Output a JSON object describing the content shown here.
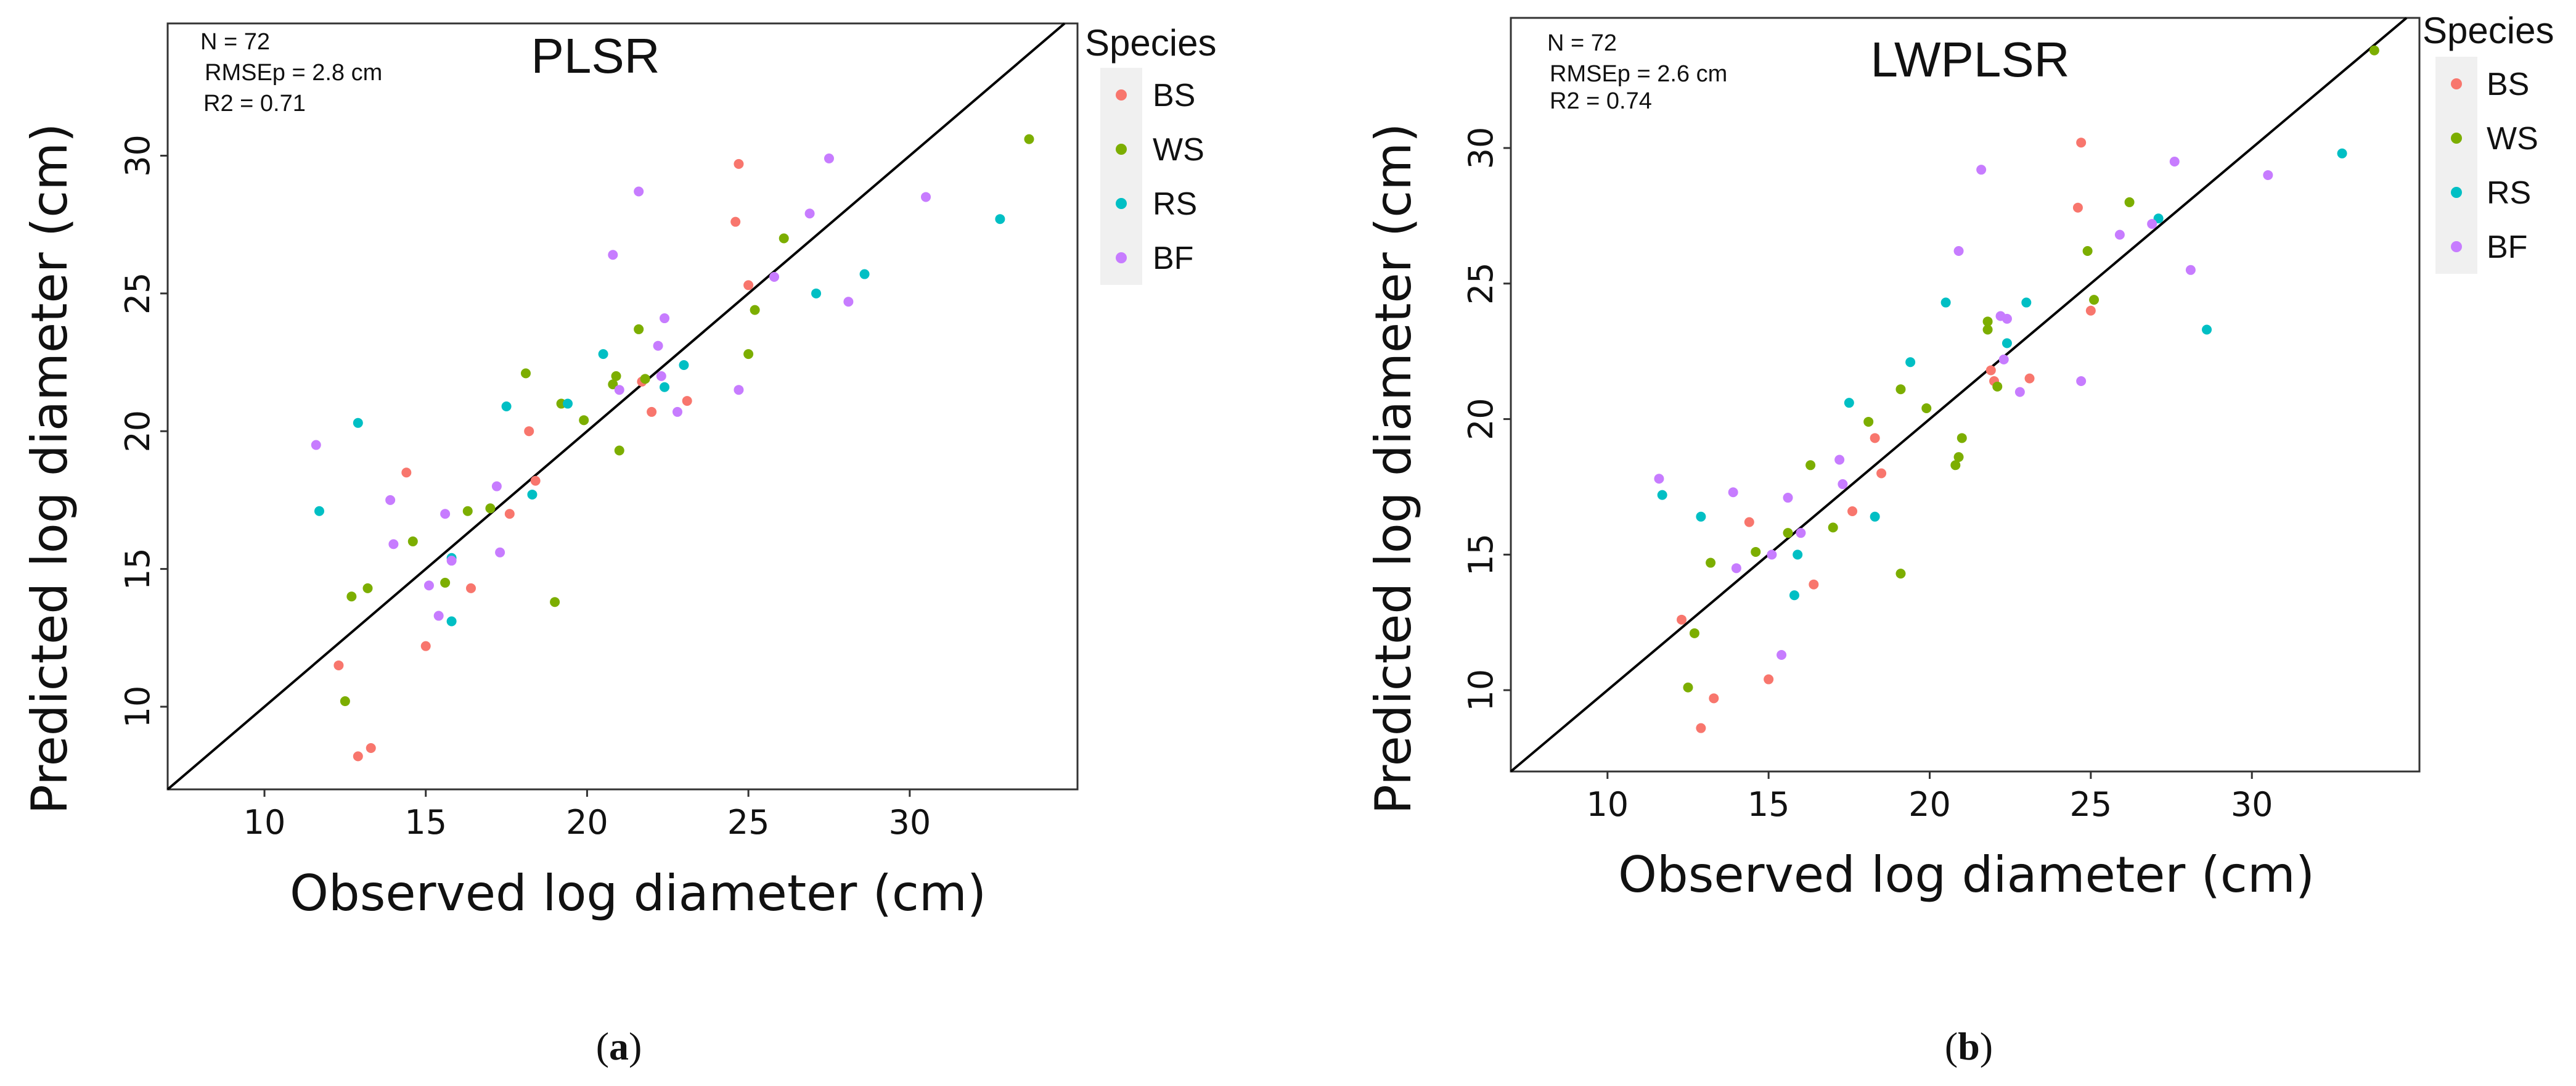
{
  "chart_data": [
    {
      "type": "scatter",
      "panel_label": "a",
      "title": "PLSR",
      "xlabel": "Observed log diameter (cm)",
      "ylabel": "Predicted log diameter (cm)",
      "xlim": [
        7,
        35.2
      ],
      "ylim": [
        7,
        34.8
      ],
      "xticks": [
        10,
        15,
        20,
        25,
        30
      ],
      "yticks": [
        10,
        15,
        20,
        25,
        30
      ],
      "grid": false,
      "reference_line": "y = x",
      "legend_position": "right",
      "stats": {
        "n": "N = 72",
        "rmse": "RMSEp = 2.8 cm",
        "r2": "R2 =  0.71"
      },
      "legend": {
        "title": "Species",
        "entries": [
          {
            "name": "BS",
            "color": "#F8766D"
          },
          {
            "name": "WS",
            "color": "#7CAE00"
          },
          {
            "name": "RS",
            "color": "#00BFC4"
          },
          {
            "name": "BF",
            "color": "#C77CFF"
          }
        ]
      },
      "series": [
        {
          "name": "BS",
          "color": "#F8766D",
          "points": [
            [
              24.7,
              29.7
            ],
            [
              24.6,
              27.6
            ],
            [
              25.0,
              25.3
            ],
            [
              21.7,
              21.8
            ],
            [
              22.0,
              20.7
            ],
            [
              23.1,
              21.1
            ],
            [
              18.2,
              20.0
            ],
            [
              18.4,
              18.2
            ],
            [
              17.6,
              17.0
            ],
            [
              14.4,
              18.5
            ],
            [
              16.4,
              14.3
            ],
            [
              15.0,
              12.2
            ],
            [
              12.3,
              11.5
            ],
            [
              13.3,
              8.5
            ],
            [
              12.9,
              8.2
            ]
          ]
        },
        {
          "name": "WS",
          "color": "#7CAE00",
          "points": [
            [
              33.7,
              30.6
            ],
            [
              26.1,
              27.0
            ],
            [
              25.2,
              24.4
            ],
            [
              25.0,
              22.8
            ],
            [
              21.6,
              23.7
            ],
            [
              21.8,
              21.9
            ],
            [
              20.9,
              22.0
            ],
            [
              20.8,
              21.7
            ],
            [
              18.1,
              22.1
            ],
            [
              19.2,
              21.0
            ],
            [
              19.9,
              20.4
            ],
            [
              21.0,
              19.3
            ],
            [
              17.0,
              17.2
            ],
            [
              16.3,
              17.1
            ],
            [
              15.6,
              14.5
            ],
            [
              14.6,
              16.0
            ],
            [
              13.2,
              14.3
            ],
            [
              12.7,
              14.0
            ],
            [
              12.5,
              10.2
            ],
            [
              19.0,
              13.8
            ]
          ]
        },
        {
          "name": "RS",
          "color": "#00BFC4",
          "points": [
            [
              32.8,
              27.7
            ],
            [
              28.6,
              25.7
            ],
            [
              27.1,
              25.0
            ],
            [
              23.0,
              22.4
            ],
            [
              22.4,
              21.6
            ],
            [
              20.5,
              22.8
            ],
            [
              19.4,
              21.0
            ],
            [
              17.5,
              20.9
            ],
            [
              18.3,
              17.7
            ],
            [
              12.9,
              20.3
            ],
            [
              11.7,
              17.1
            ],
            [
              15.8,
              13.1
            ],
            [
              15.8,
              15.4
            ]
          ]
        },
        {
          "name": "BF",
          "color": "#C77CFF",
          "points": [
            [
              30.5,
              28.5
            ],
            [
              27.5,
              29.9
            ],
            [
              26.9,
              27.9
            ],
            [
              28.1,
              24.7
            ],
            [
              25.8,
              25.6
            ],
            [
              21.6,
              28.7
            ],
            [
              20.8,
              26.4
            ],
            [
              22.4,
              24.1
            ],
            [
              22.2,
              23.1
            ],
            [
              22.3,
              22.0
            ],
            [
              22.8,
              20.7
            ],
            [
              24.7,
              21.5
            ],
            [
              21.0,
              21.5
            ],
            [
              17.2,
              18.0
            ],
            [
              17.3,
              15.6
            ],
            [
              15.6,
              17.0
            ],
            [
              15.8,
              15.3
            ],
            [
              15.1,
              14.4
            ],
            [
              15.4,
              13.3
            ],
            [
              14.0,
              15.9
            ],
            [
              13.9,
              17.5
            ],
            [
              11.6,
              19.5
            ]
          ]
        }
      ]
    },
    {
      "type": "scatter",
      "panel_label": "b",
      "title": "LWPLSR",
      "xlabel": "Observed log diameter (cm)",
      "ylabel": "Predicted log diameter (cm)",
      "xlim": [
        7,
        35.2
      ],
      "ylim": [
        7,
        34.8
      ],
      "xticks": [
        10,
        15,
        20,
        25,
        30
      ],
      "yticks": [
        10,
        15,
        20,
        25,
        30
      ],
      "grid": false,
      "reference_line": "y = x",
      "legend_position": "right",
      "stats": {
        "n": "N = 72",
        "rmse": "RMSEp = 2.6 cm",
        "r2": "R2 =  0.74"
      },
      "legend": {
        "title": "Species",
        "entries": [
          {
            "name": "BS",
            "color": "#F8766D"
          },
          {
            "name": "WS",
            "color": "#7CAE00"
          },
          {
            "name": "RS",
            "color": "#00BFC4"
          },
          {
            "name": "BF",
            "color": "#C77CFF"
          }
        ]
      },
      "series": [
        {
          "name": "BS",
          "color": "#F8766D",
          "points": [
            [
              24.7,
              30.2
            ],
            [
              24.6,
              27.8
            ],
            [
              25.0,
              24.0
            ],
            [
              21.9,
              21.8
            ],
            [
              22.0,
              21.4
            ],
            [
              23.1,
              21.5
            ],
            [
              18.3,
              19.3
            ],
            [
              18.5,
              18.0
            ],
            [
              17.6,
              16.6
            ],
            [
              14.4,
              16.2
            ],
            [
              16.4,
              13.9
            ],
            [
              15.0,
              10.4
            ],
            [
              12.3,
              12.6
            ],
            [
              13.3,
              9.7
            ],
            [
              12.9,
              8.6
            ]
          ]
        },
        {
          "name": "WS",
          "color": "#7CAE00",
          "points": [
            [
              33.8,
              33.6
            ],
            [
              26.2,
              28.0
            ],
            [
              24.9,
              26.2
            ],
            [
              25.1,
              24.4
            ],
            [
              21.8,
              23.6
            ],
            [
              21.8,
              23.3
            ],
            [
              22.1,
              21.2
            ],
            [
              20.9,
              18.6
            ],
            [
              20.8,
              18.3
            ],
            [
              18.1,
              19.9
            ],
            [
              19.1,
              21.1
            ],
            [
              19.9,
              20.4
            ],
            [
              21.0,
              19.3
            ],
            [
              17.0,
              16.0
            ],
            [
              16.3,
              18.3
            ],
            [
              15.6,
              15.8
            ],
            [
              14.6,
              15.1
            ],
            [
              13.2,
              14.7
            ],
            [
              12.7,
              12.1
            ],
            [
              12.5,
              10.1
            ],
            [
              19.1,
              14.3
            ]
          ]
        },
        {
          "name": "RS",
          "color": "#00BFC4",
          "points": [
            [
              32.8,
              29.8
            ],
            [
              27.1,
              27.4
            ],
            [
              28.6,
              23.3
            ],
            [
              23.0,
              24.3
            ],
            [
              22.4,
              22.8
            ],
            [
              20.5,
              24.3
            ],
            [
              19.4,
              22.1
            ],
            [
              17.5,
              20.6
            ],
            [
              18.3,
              16.4
            ],
            [
              12.9,
              16.4
            ],
            [
              11.7,
              17.2
            ],
            [
              15.8,
              13.5
            ],
            [
              15.9,
              15.0
            ]
          ]
        },
        {
          "name": "BF",
          "color": "#C77CFF",
          "points": [
            [
              30.5,
              29.0
            ],
            [
              27.6,
              29.5
            ],
            [
              26.9,
              27.2
            ],
            [
              28.1,
              25.5
            ],
            [
              25.9,
              26.8
            ],
            [
              21.6,
              29.2
            ],
            [
              20.9,
              26.2
            ],
            [
              22.4,
              23.7
            ],
            [
              22.2,
              23.8
            ],
            [
              22.3,
              22.2
            ],
            [
              22.8,
              21.0
            ],
            [
              24.7,
              21.4
            ],
            [
              17.2,
              18.5
            ],
            [
              17.3,
              17.6
            ],
            [
              15.6,
              17.1
            ],
            [
              16.0,
              15.8
            ],
            [
              15.1,
              15.0
            ],
            [
              15.4,
              11.3
            ],
            [
              14.0,
              14.5
            ],
            [
              13.9,
              17.3
            ],
            [
              11.6,
              17.8
            ]
          ]
        }
      ]
    }
  ],
  "captions": [
    {
      "open": "(",
      "letter": "a",
      "close": ")"
    },
    {
      "open": "(",
      "letter": "b",
      "close": ")"
    }
  ]
}
